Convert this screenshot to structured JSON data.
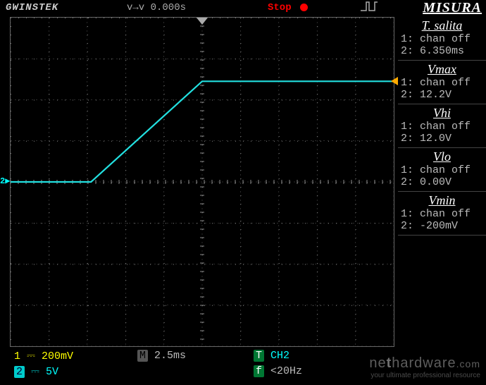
{
  "topbar": {
    "brand": "GWINSTEK",
    "time_cursor": "v→v 0.000s",
    "status": "Stop",
    "title": "MISURA"
  },
  "grid": {
    "xdiv": 10,
    "ydiv": 8,
    "color": "#555555",
    "dot_color": "#888888",
    "bg": "#000000",
    "border": "#666666"
  },
  "trace": {
    "color": "#22e0e0",
    "width": 2.2,
    "points": [
      [
        0.0,
        0.0
      ],
      [
        2.1,
        0.0
      ],
      [
        5.0,
        2.45
      ],
      [
        10.0,
        2.45
      ]
    ],
    "y_center_div": 4.0
  },
  "ch_marker": {
    "label": "2",
    "y_div": 4.0,
    "color": "#00ffff"
  },
  "trig_marker": {
    "y_div": 1.55,
    "color": "#ffaa00"
  },
  "measurements": [
    {
      "name": "T. salita",
      "ch1": "chan off",
      "ch2": "6.350ms"
    },
    {
      "name": "Vmax",
      "ch1": "chan off",
      "ch2": "12.2V"
    },
    {
      "name": "Vhi",
      "ch1": "chan off",
      "ch2": "12.0V"
    },
    {
      "name": "Vlo",
      "ch1": "chan off",
      "ch2": "0.00V"
    },
    {
      "name": "Vmin",
      "ch1": "chan off",
      "ch2": "-200mV"
    }
  ],
  "bottombar": {
    "ch1": {
      "num": "1",
      "scale": "200mV"
    },
    "timebase_prefix": "M",
    "timebase": "2.5ms",
    "trig_src_prefix": "T",
    "trig_src": "CH2",
    "ch2": {
      "num": "2",
      "scale": "5V"
    },
    "filter_prefix": "f",
    "filter": "<20Hz"
  },
  "watermark": {
    "main_pre": "ne",
    "main_mid": "t",
    "main_post": "hardware",
    "main_suffix": ".com",
    "sub": "your ultimate professional resource"
  },
  "colors": {
    "ch1": "#ffff00",
    "ch2": "#00ffff",
    "gray": "#bbbbbb",
    "green": "#00cc00",
    "stop": "#ff0000"
  }
}
